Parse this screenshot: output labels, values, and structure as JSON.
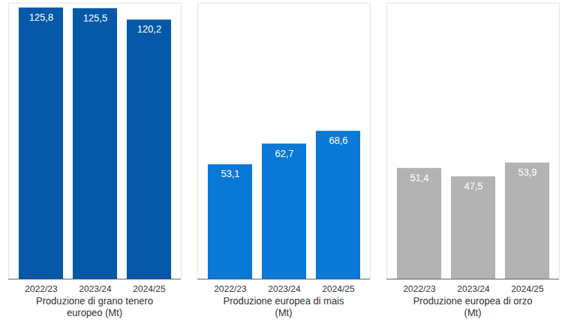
{
  "chart_data": [
    {
      "type": "bar",
      "title": "Produzione di grano tenero europeo (Mt)",
      "categories": [
        "2022/23",
        "2023/24",
        "2024/25"
      ],
      "values": [
        125.8,
        125.5,
        120.2
      ],
      "value_labels": [
        "125,8",
        "125,5",
        "120,2"
      ],
      "color": "#0559a8",
      "ylim": [
        0,
        128
      ],
      "grid": false,
      "data_labels": true,
      "tick_labels": "x"
    },
    {
      "type": "bar",
      "title": "Produzione europea di mais (Mt)",
      "categories": [
        "2022/23",
        "2023/24",
        "2024/25"
      ],
      "values": [
        53.1,
        62.7,
        68.6
      ],
      "value_labels": [
        "53,1",
        "62,7",
        "68,6"
      ],
      "color": "#0a78d6",
      "ylim": [
        0,
        128
      ],
      "grid": false,
      "data_labels": true,
      "tick_labels": "x"
    },
    {
      "type": "bar",
      "title": "Produzione europea di orzo (Mt)",
      "categories": [
        "2022/23",
        "2023/24",
        "2024/25"
      ],
      "values": [
        51.4,
        47.5,
        53.9
      ],
      "value_labels": [
        "51,4",
        "47,5",
        "53,9"
      ],
      "color": "#b3b3b3",
      "ylim": [
        0,
        128
      ],
      "grid": false,
      "data_labels": true,
      "tick_labels": "x"
    }
  ]
}
